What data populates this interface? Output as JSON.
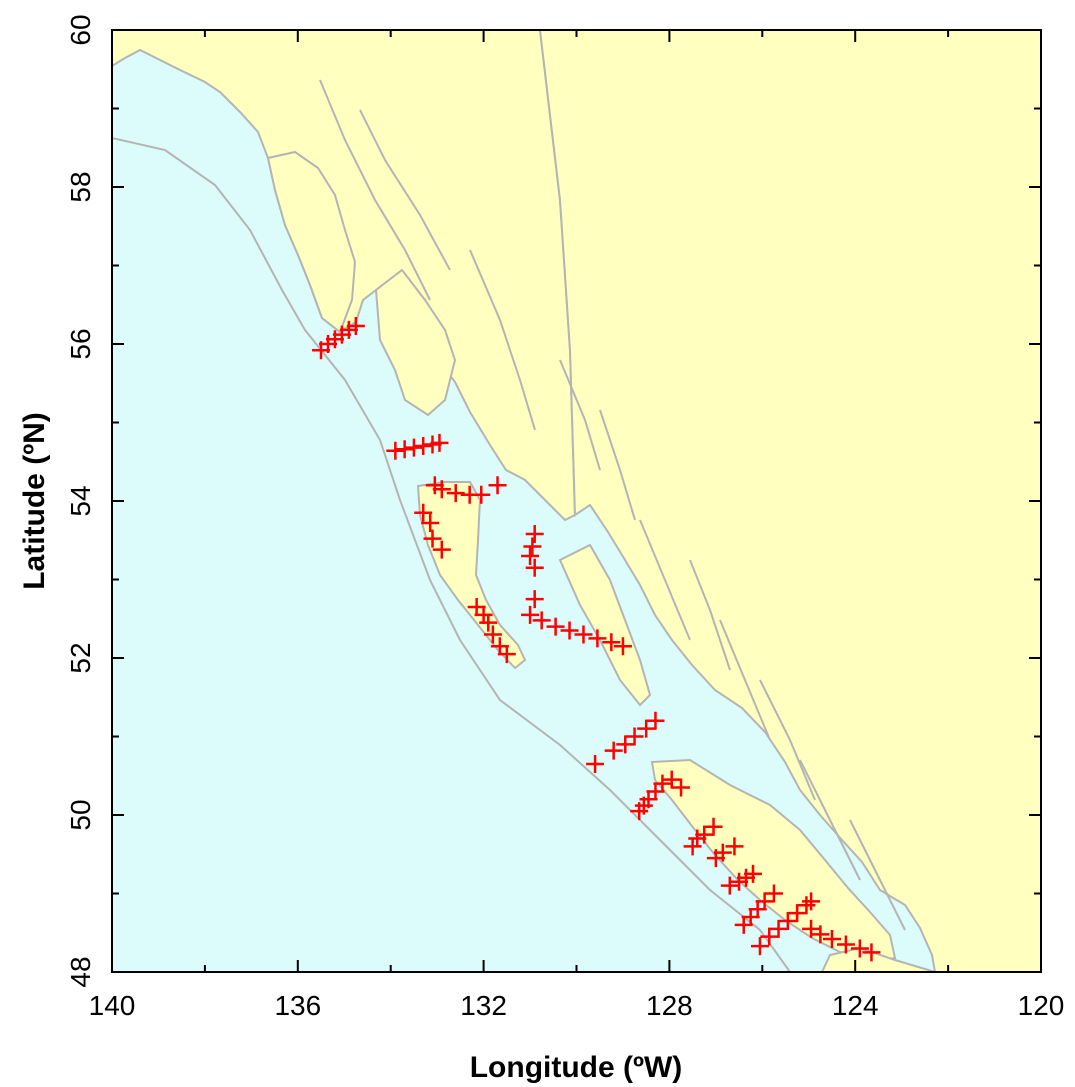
{
  "chart_data": {
    "type": "scatter",
    "title": "",
    "xlabel": "Longitude (ºW)",
    "ylabel": "Latitude (ºN)",
    "xlim": [
      140,
      120
    ],
    "ylim": [
      48,
      60
    ],
    "x_ticks": [
      140,
      136,
      132,
      128,
      124,
      120
    ],
    "y_ticks": [
      48,
      50,
      52,
      54,
      56,
      58,
      60
    ],
    "marker": "plus",
    "marker_color": "#ff0000",
    "colors": {
      "ocean": "#dcfcfc",
      "land": "#ffffc0",
      "coastline": "#b4b4b4",
      "frame": "#000000"
    },
    "series": [
      {
        "points": [
          [
            135.5,
            55.92
          ],
          [
            135.35,
            56.0
          ],
          [
            135.2,
            56.06
          ],
          [
            135.05,
            56.12
          ],
          [
            134.9,
            56.18
          ],
          [
            134.75,
            56.23
          ],
          [
            133.9,
            54.64
          ],
          [
            133.7,
            54.66
          ],
          [
            133.5,
            54.68
          ],
          [
            133.3,
            54.7
          ],
          [
            133.1,
            54.72
          ],
          [
            132.95,
            54.74
          ],
          [
            133.05,
            54.2
          ],
          [
            132.9,
            54.15
          ],
          [
            132.6,
            54.1
          ],
          [
            132.3,
            54.08
          ],
          [
            132.05,
            54.08
          ],
          [
            131.7,
            54.2
          ],
          [
            133.3,
            53.85
          ],
          [
            133.15,
            53.72
          ],
          [
            133.1,
            53.52
          ],
          [
            132.9,
            53.38
          ],
          [
            130.9,
            53.58
          ],
          [
            130.95,
            53.42
          ],
          [
            131.0,
            53.3
          ],
          [
            130.9,
            53.15
          ],
          [
            130.9,
            52.75
          ],
          [
            131.0,
            52.55
          ],
          [
            130.75,
            52.48
          ],
          [
            130.45,
            52.4
          ],
          [
            130.15,
            52.35
          ],
          [
            129.85,
            52.3
          ],
          [
            129.55,
            52.25
          ],
          [
            129.25,
            52.2
          ],
          [
            129.0,
            52.15
          ],
          [
            132.15,
            52.65
          ],
          [
            132.0,
            52.55
          ],
          [
            131.9,
            52.45
          ],
          [
            131.8,
            52.3
          ],
          [
            131.65,
            52.15
          ],
          [
            131.5,
            52.05
          ],
          [
            128.3,
            51.2
          ],
          [
            128.5,
            51.1
          ],
          [
            128.75,
            51.0
          ],
          [
            128.95,
            50.9
          ],
          [
            129.2,
            50.82
          ],
          [
            129.6,
            50.65
          ],
          [
            127.75,
            50.35
          ],
          [
            127.95,
            50.45
          ],
          [
            128.15,
            50.4
          ],
          [
            128.3,
            50.3
          ],
          [
            128.45,
            50.2
          ],
          [
            128.55,
            50.12
          ],
          [
            128.65,
            50.05
          ],
          [
            127.05,
            49.85
          ],
          [
            127.25,
            49.75
          ],
          [
            127.4,
            49.7
          ],
          [
            127.5,
            49.6
          ],
          [
            126.6,
            49.6
          ],
          [
            126.85,
            49.52
          ],
          [
            127.0,
            49.45
          ],
          [
            126.2,
            49.25
          ],
          [
            126.35,
            49.2
          ],
          [
            126.5,
            49.15
          ],
          [
            126.7,
            49.1
          ],
          [
            125.75,
            49.0
          ],
          [
            125.95,
            48.9
          ],
          [
            126.1,
            48.8
          ],
          [
            126.25,
            48.7
          ],
          [
            126.4,
            48.6
          ],
          [
            124.95,
            48.9
          ],
          [
            125.05,
            48.85
          ],
          [
            125.25,
            48.75
          ],
          [
            125.45,
            48.65
          ],
          [
            125.65,
            48.55
          ],
          [
            125.85,
            48.45
          ],
          [
            126.05,
            48.33
          ],
          [
            124.95,
            48.55
          ],
          [
            124.75,
            48.48
          ],
          [
            124.5,
            48.42
          ],
          [
            124.2,
            48.35
          ],
          [
            123.9,
            48.3
          ],
          [
            123.65,
            48.25
          ]
        ]
      }
    ]
  }
}
